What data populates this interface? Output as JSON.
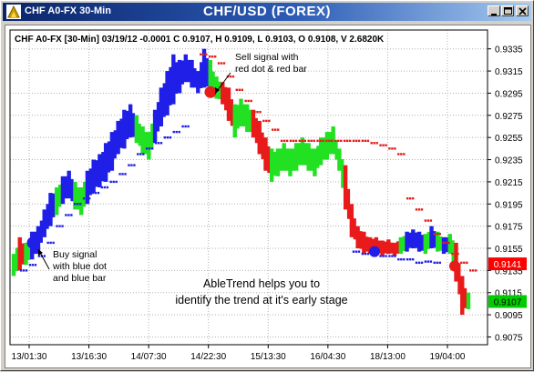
{
  "window": {
    "symbol_tab": "CHF A0-FX 30-Min",
    "title": "CHF/USD (FOREX)"
  },
  "chart": {
    "header": "CHF A0-FX [30-Min] 03/19/12  -0.0001 C 0.9107, H 0.9109, L 0.9103, O 0.9108, V 2.6820K",
    "annotations": {
      "sell_line1": "Sell signal with",
      "sell_line2": "red dot & red bar",
      "buy_line1": "Buy signal",
      "buy_line2": "with blue dot",
      "buy_line3": "and blue bar",
      "message_line1": "AbleTrend helps you to",
      "message_line2": "identify the trend at it's early stage"
    },
    "badges": {
      "red_value": "0.9141",
      "green_value": "0.9107"
    }
  },
  "chart_data": {
    "type": "line",
    "title": "CHF/USD (FOREX)",
    "xlabel": "",
    "ylabel": "",
    "ylim": [
      0.9068,
      0.9352
    ],
    "x_tick_labels": [
      "13/01:30",
      "13/16:30",
      "14/07:30",
      "14/22:30",
      "15/13:30",
      "16/04:30",
      "18/13:00",
      "19/04:00"
    ],
    "y_tick_labels": [
      "0.9075",
      "0.9095",
      "0.9115",
      "0.9135",
      "0.9155",
      "0.9175",
      "0.9195",
      "0.9215",
      "0.9235",
      "0.9255",
      "0.9275",
      "0.9295",
      "0.9315",
      "0.9335"
    ],
    "y_ticks": [
      0.9075,
      0.9095,
      0.9115,
      0.9135,
      0.9155,
      0.9175,
      0.9195,
      0.9215,
      0.9235,
      0.9255,
      0.9275,
      0.9295,
      0.9315,
      0.9335
    ],
    "price_bars": [
      [
        0.913,
        0.915,
        "g"
      ],
      [
        0.9135,
        0.9165,
        "r"
      ],
      [
        0.914,
        0.916,
        "g"
      ],
      [
        0.9145,
        0.917,
        "b"
      ],
      [
        0.915,
        0.9175,
        "b"
      ],
      [
        0.9165,
        0.919,
        "b"
      ],
      [
        0.9175,
        0.9205,
        "b"
      ],
      [
        0.9185,
        0.921,
        "g"
      ],
      [
        0.9195,
        0.922,
        "b"
      ],
      [
        0.92,
        0.9225,
        "b"
      ],
      [
        0.919,
        0.9215,
        "g"
      ],
      [
        0.9185,
        0.921,
        "g"
      ],
      [
        0.9195,
        0.9225,
        "b"
      ],
      [
        0.9205,
        0.9235,
        "b"
      ],
      [
        0.921,
        0.924,
        "b"
      ],
      [
        0.9215,
        0.925,
        "b"
      ],
      [
        0.9225,
        0.926,
        "b"
      ],
      [
        0.924,
        0.927,
        "b"
      ],
      [
        0.9245,
        0.928,
        "b"
      ],
      [
        0.9255,
        0.9285,
        "b"
      ],
      [
        0.925,
        0.9275,
        "g"
      ],
      [
        0.924,
        0.9265,
        "g"
      ],
      [
        0.9235,
        0.926,
        "g"
      ],
      [
        0.925,
        0.928,
        "b"
      ],
      [
        0.9265,
        0.93,
        "b"
      ],
      [
        0.9275,
        0.9315,
        "b"
      ],
      [
        0.9285,
        0.933,
        "b"
      ],
      [
        0.9295,
        0.9325,
        "b"
      ],
      [
        0.9305,
        0.933,
        "b"
      ],
      [
        0.93,
        0.9325,
        "b"
      ],
      [
        0.9295,
        0.9315,
        "b"
      ],
      [
        0.93,
        0.9335,
        "b"
      ],
      [
        0.9295,
        0.9325,
        "g"
      ],
      [
        0.929,
        0.931,
        "g"
      ],
      [
        0.9285,
        0.9305,
        "r"
      ],
      [
        0.927,
        0.93,
        "r"
      ],
      [
        0.9255,
        0.9285,
        "g"
      ],
      [
        0.9265,
        0.929,
        "g"
      ],
      [
        0.926,
        0.9285,
        "g"
      ],
      [
        0.9255,
        0.928,
        "r"
      ],
      [
        0.924,
        0.927,
        "r"
      ],
      [
        0.9225,
        0.9255,
        "r"
      ],
      [
        0.9215,
        0.9245,
        "g"
      ],
      [
        0.922,
        0.9245,
        "g"
      ],
      [
        0.9225,
        0.925,
        "g"
      ],
      [
        0.922,
        0.9245,
        "g"
      ],
      [
        0.9225,
        0.925,
        "g"
      ],
      [
        0.923,
        0.9255,
        "g"
      ],
      [
        0.9225,
        0.925,
        "g"
      ],
      [
        0.922,
        0.9245,
        "g"
      ],
      [
        0.923,
        0.9255,
        "g"
      ],
      [
        0.9235,
        0.926,
        "g"
      ],
      [
        0.924,
        0.9265,
        "g"
      ],
      [
        0.9225,
        0.9245,
        "g"
      ],
      [
        0.919,
        0.923,
        "r"
      ],
      [
        0.9165,
        0.9195,
        "r"
      ],
      [
        0.9155,
        0.9175,
        "r"
      ],
      [
        0.915,
        0.917,
        "r"
      ],
      [
        0.915,
        0.9165,
        "r"
      ],
      [
        0.915,
        0.9165,
        "r"
      ],
      [
        0.9148,
        0.9162,
        "r"
      ],
      [
        0.915,
        0.9163,
        "r"
      ],
      [
        0.9148,
        0.916,
        "r"
      ],
      [
        0.915,
        0.9165,
        "g"
      ],
      [
        0.9152,
        0.917,
        "b"
      ],
      [
        0.9155,
        0.9172,
        "b"
      ],
      [
        0.9152,
        0.917,
        "b"
      ],
      [
        0.915,
        0.9168,
        "g"
      ],
      [
        0.9155,
        0.9175,
        "b"
      ],
      [
        0.9152,
        0.917,
        "g"
      ],
      [
        0.915,
        0.9165,
        "b"
      ],
      [
        0.915,
        0.9168,
        "g"
      ],
      [
        0.9125,
        0.916,
        "r"
      ],
      [
        0.9095,
        0.913,
        "r"
      ],
      [
        0.91,
        0.9115,
        "g"
      ]
    ],
    "upper_dots": [
      [
        21,
        0.933
      ],
      [
        22,
        0.9328
      ],
      [
        23,
        0.9322
      ],
      [
        24,
        0.931
      ],
      [
        25,
        0.9298
      ],
      [
        26,
        0.9288
      ],
      [
        27,
        0.9278
      ],
      [
        28,
        0.927
      ],
      [
        29,
        0.9262
      ],
      [
        30,
        0.9252
      ],
      [
        31,
        0.9252
      ],
      [
        32,
        0.9252
      ],
      [
        33,
        0.9252
      ],
      [
        34,
        0.9252
      ],
      [
        35,
        0.9252
      ],
      [
        36,
        0.9252
      ],
      [
        37,
        0.9252
      ],
      [
        38,
        0.9252
      ],
      [
        39,
        0.9252
      ],
      [
        40,
        0.925
      ],
      [
        41,
        0.9248
      ],
      [
        42,
        0.9245
      ],
      [
        43,
        0.924
      ],
      [
        44,
        0.92
      ],
      [
        45,
        0.919
      ],
      [
        46,
        0.918
      ],
      [
        47,
        0.9168
      ],
      [
        48,
        0.916
      ],
      [
        49,
        0.915
      ],
      [
        50,
        0.9142
      ],
      [
        51,
        0.9135
      ]
    ],
    "lower_dots": [
      [
        1,
        0.9135
      ],
      [
        2,
        0.914
      ],
      [
        3,
        0.9148
      ],
      [
        4,
        0.916
      ],
      [
        5,
        0.9175
      ],
      [
        6,
        0.9185
      ],
      [
        7,
        0.9195
      ],
      [
        8,
        0.92
      ],
      [
        9,
        0.9205
      ],
      [
        10,
        0.921
      ],
      [
        11,
        0.9215
      ],
      [
        12,
        0.9222
      ],
      [
        13,
        0.923
      ],
      [
        14,
        0.924
      ],
      [
        15,
        0.9245
      ],
      [
        16,
        0.925
      ],
      [
        17,
        0.9255
      ],
      [
        18,
        0.926
      ],
      [
        19,
        0.9265
      ],
      [
        38,
        0.9152
      ],
      [
        39,
        0.915
      ],
      [
        40,
        0.915
      ],
      [
        41,
        0.9148
      ],
      [
        42,
        0.9148
      ],
      [
        43,
        0.9145
      ],
      [
        44,
        0.9145
      ],
      [
        45,
        0.9142
      ],
      [
        46,
        0.9143
      ],
      [
        47,
        0.9142
      ]
    ],
    "buy_signal": {
      "price": 0.916
    },
    "sell_signal": {
      "price": 0.9296
    },
    "buy_dot_2": {
      "price": 0.9152
    },
    "sell_dot_2": {
      "price": 0.9139
    },
    "colors": {
      "blue": "#1f1fe8",
      "green": "#22e022",
      "red": "#e81a1a",
      "badge_red": "#ff0000",
      "badge_green": "#00cc00"
    }
  }
}
